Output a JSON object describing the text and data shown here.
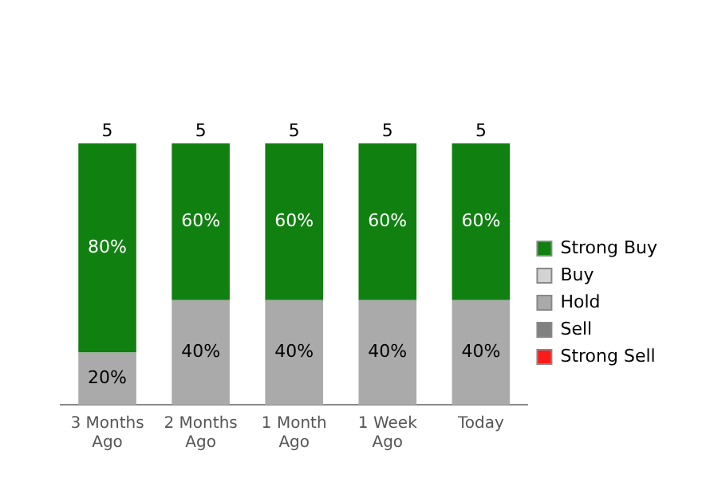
{
  "chart_data": {
    "type": "bar",
    "stacked": true,
    "categories": [
      "3 Months\nAgo",
      "2 Months\nAgo",
      "1 Month\nAgo",
      "1 Week\nAgo",
      "Today"
    ],
    "series": [
      {
        "name": "Strong Sell",
        "color": "#ff1a1a",
        "values": [
          null,
          null,
          null,
          null,
          null
        ]
      },
      {
        "name": "Sell",
        "color": "#808080",
        "values": [
          null,
          null,
          null,
          null,
          null
        ]
      },
      {
        "name": "Hold",
        "color": "#aaaaaa",
        "values": [
          20,
          40,
          40,
          40,
          40
        ],
        "value_labels": [
          "20%",
          "40%",
          "40%",
          "40%",
          "40%"
        ]
      },
      {
        "name": "Buy",
        "color": "#d3d3d3",
        "values": [
          null,
          null,
          null,
          null,
          null
        ]
      },
      {
        "name": "Strong Buy",
        "color": "#108010",
        "values": [
          80,
          60,
          60,
          60,
          60
        ],
        "value_labels": [
          "80%",
          "60%",
          "60%",
          "60%",
          "60%"
        ]
      }
    ],
    "annotations": [
      {
        "text": "5",
        "x": "3 Months\nAgo",
        "y": 100
      },
      {
        "text": "5",
        "x": "2 Months\nAgo",
        "y": 100
      },
      {
        "text": "5",
        "x": "1 Month\nAgo",
        "y": 100
      },
      {
        "text": "5",
        "x": "1 Week\nAgo",
        "y": 100
      },
      {
        "text": "5",
        "x": "Today",
        "y": 100
      }
    ],
    "legend": "right",
    "grid": false,
    "tick_labels": "x"
  }
}
